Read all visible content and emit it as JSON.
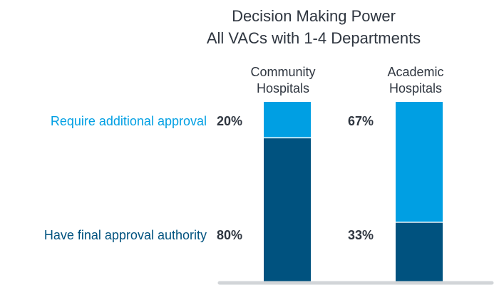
{
  "chart_data": {
    "type": "bar",
    "stacked": true,
    "title": "Decision Making Power",
    "subtitle": "All VACs with 1-4 Departments",
    "categories": [
      "Community Hospitals",
      "Academic Hospitals"
    ],
    "series": [
      {
        "name": "Have final approval authority",
        "values": [
          80,
          33
        ],
        "labels": [
          "80%",
          "33%"
        ],
        "color": "#00527f"
      },
      {
        "name": "Require additional approval",
        "values": [
          20,
          67
        ],
        "labels": [
          "20%",
          "67%"
        ],
        "color": "#009fe3"
      }
    ],
    "ylim": [
      0,
      100
    ],
    "xlabel": "",
    "ylabel": ""
  },
  "colors": {
    "baseline": "#d2d5d8",
    "text": "#2f3640"
  }
}
